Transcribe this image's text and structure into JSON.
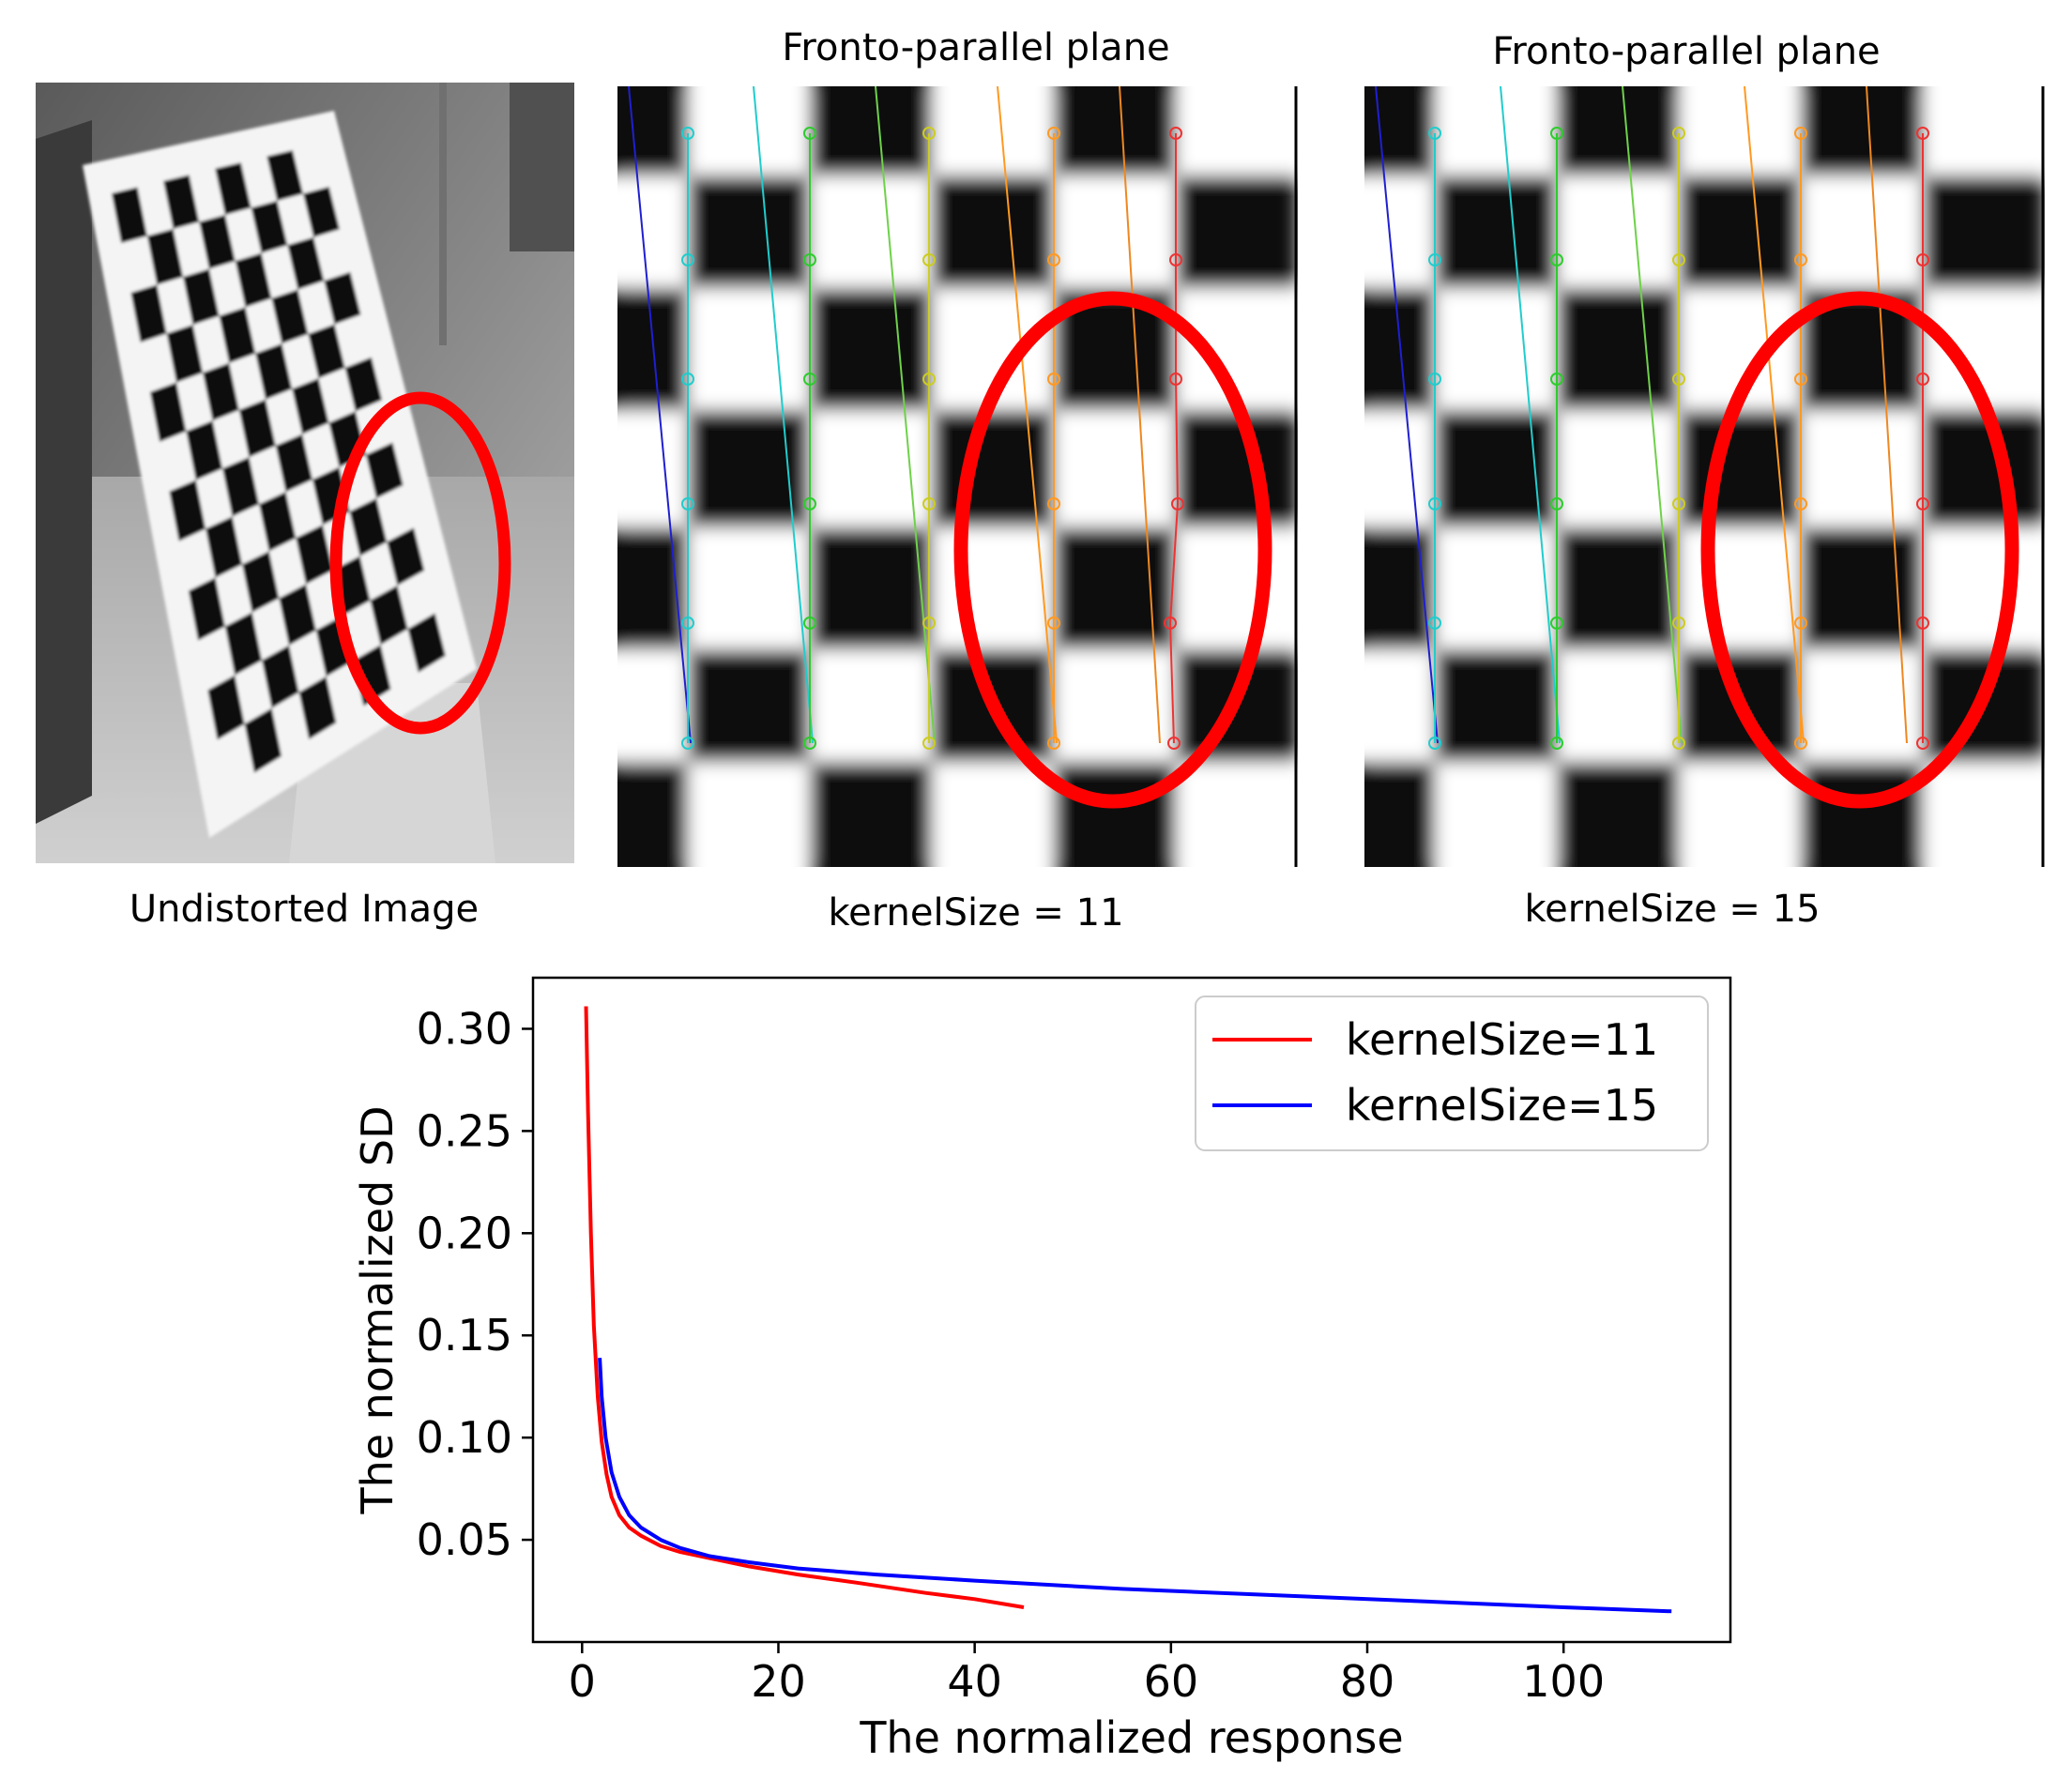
{
  "figure": {
    "panels": [
      {
        "caption": "Undistorted Image"
      },
      {
        "title": "Fronto-parallel plane",
        "caption": "kernelSize = 11"
      },
      {
        "title": "Fronto-parallel plane",
        "caption": "kernelSize = 15"
      }
    ],
    "colors": {
      "circle": "#ff0000",
      "grid_lines": [
        "#1f1fd0",
        "#22cccc",
        "#2ecc2e",
        "#6fd14a",
        "#cccc22",
        "#ff9922",
        "#ee8822",
        "#ee3333"
      ]
    }
  },
  "chart_data": {
    "type": "line",
    "xlabel": "The normalized response",
    "ylabel": "The normalized SD",
    "xlim": [
      -5,
      117
    ],
    "ylim": [
      0.0,
      0.325
    ],
    "xticks": [
      0,
      20,
      40,
      60,
      80,
      100
    ],
    "yticks": [
      0.05,
      0.1,
      0.15,
      0.2,
      0.25,
      0.3
    ],
    "ytick_labels": [
      "0.05",
      "0.10",
      "0.15",
      "0.20",
      "0.25",
      "0.30"
    ],
    "grid": false,
    "legend_position": "top-right",
    "series": [
      {
        "name": "kernelSize=11",
        "color": "#ff0000",
        "x": [
          0.4,
          0.6,
          0.9,
          1.2,
          1.6,
          2.0,
          2.5,
          3.0,
          3.8,
          4.8,
          6.0,
          8.0,
          10.0,
          13.0,
          17.0,
          22.0,
          28.0,
          35.0,
          40.0,
          45.0
        ],
        "y": [
          0.311,
          0.26,
          0.2,
          0.155,
          0.12,
          0.098,
          0.082,
          0.071,
          0.062,
          0.056,
          0.052,
          0.047,
          0.044,
          0.041,
          0.037,
          0.033,
          0.029,
          0.024,
          0.021,
          0.017
        ]
      },
      {
        "name": "kernelSize=15",
        "color": "#0000ff",
        "x": [
          1.8,
          2.0,
          2.4,
          3.0,
          3.8,
          4.8,
          6.0,
          8.0,
          10.0,
          13.0,
          17.0,
          22.0,
          30.0,
          40.0,
          55.0,
          70.0,
          85.0,
          100.0,
          111.0
        ],
        "y": [
          0.139,
          0.12,
          0.1,
          0.083,
          0.071,
          0.062,
          0.056,
          0.05,
          0.046,
          0.042,
          0.039,
          0.036,
          0.033,
          0.03,
          0.026,
          0.023,
          0.02,
          0.017,
          0.015
        ]
      }
    ]
  }
}
